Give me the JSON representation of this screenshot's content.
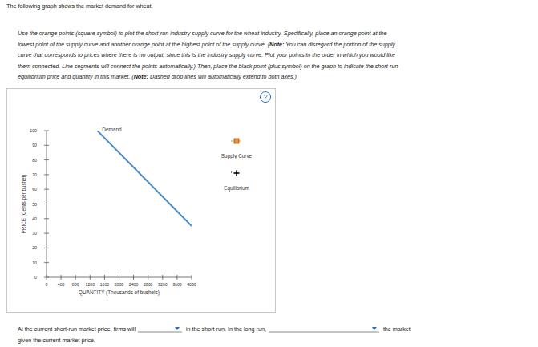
{
  "page": {
    "intro": "The following graph shows the market demand for wheat.",
    "instructions": [
      [
        "Use the orange points (square symbol) to plot the short-run industry supply curve for the wheat industry. Specifically, place an orange point at the"
      ],
      [
        "lowest point of the supply curve and another orange point at the highest point of the supply curve. (",
        "Note:",
        " You can disregard the portion of the supply"
      ],
      [
        "curve that corresponds to prices where there is no output, since this is the industry supply curve. Plot your points in the order in which you would like"
      ],
      [
        "them connected. Line segments will connect the points automatically.) Then, place the black point (plus symbol) on the graph to indicate the short-run"
      ],
      [
        "equilibrium price and quantity in this market. (",
        "Note:",
        " Dashed drop lines will automatically extend to both axes.)"
      ]
    ],
    "help": "?",
    "tools": [
      {
        "label": "Supply Curve",
        "color": "#f08a24",
        "marker": "square"
      },
      {
        "label": "Equilibrium",
        "color": "#000000",
        "marker": "plus"
      }
    ],
    "question": {
      "line1": [
        "At the current short-run market price, firms will",
        "in the short run. In the long run,",
        "the market"
      ],
      "line2": "given the current market price."
    }
  },
  "chart_data": {
    "type": "line",
    "x_label": "QUANTITY (Thousands of bushels)",
    "y_label": "PRICE (Cents per bushel)",
    "xlim": [
      0,
      4000
    ],
    "ylim": [
      0,
      100
    ],
    "xticks": [
      0,
      400,
      800,
      1200,
      1600,
      2000,
      2400,
      2800,
      3200,
      3600,
      4000
    ],
    "yticks": [
      0,
      10,
      20,
      30,
      40,
      50,
      60,
      70,
      80,
      90,
      100
    ],
    "grid": false,
    "series": [
      {
        "name": "Demand",
        "color": "#4a8ccb",
        "x": [
          1400,
          4000
        ],
        "values": [
          100,
          35
        ]
      }
    ]
  }
}
